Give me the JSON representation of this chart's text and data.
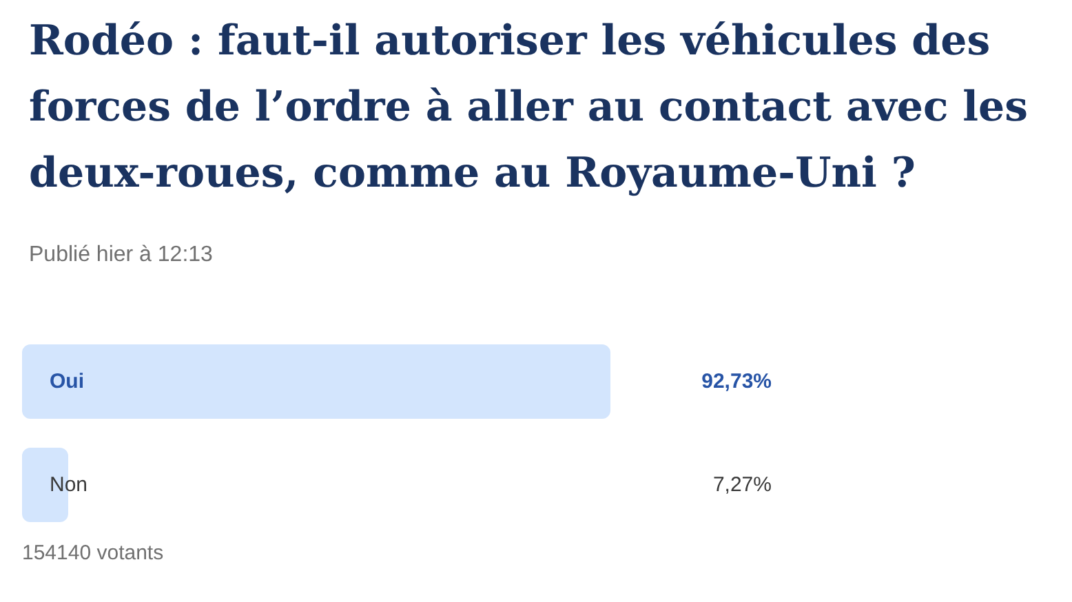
{
  "chart_data": {
    "type": "bar",
    "orientation": "horizontal",
    "title": "Rodéo : faut-il autoriser les véhicules des forces de l’ordre à aller au contact avec les deux-roues, comme au Royaume-Uni ?",
    "subtitle": "Publié hier à 12:13",
    "annotations": [
      "154140 votants"
    ],
    "categories": [
      "Oui",
      "Non"
    ],
    "values": [
      92.73,
      7.27
    ],
    "value_labels": [
      "92,73%",
      "7,27%"
    ],
    "color": "#d3e5fd",
    "tick_labels": "y"
  }
}
